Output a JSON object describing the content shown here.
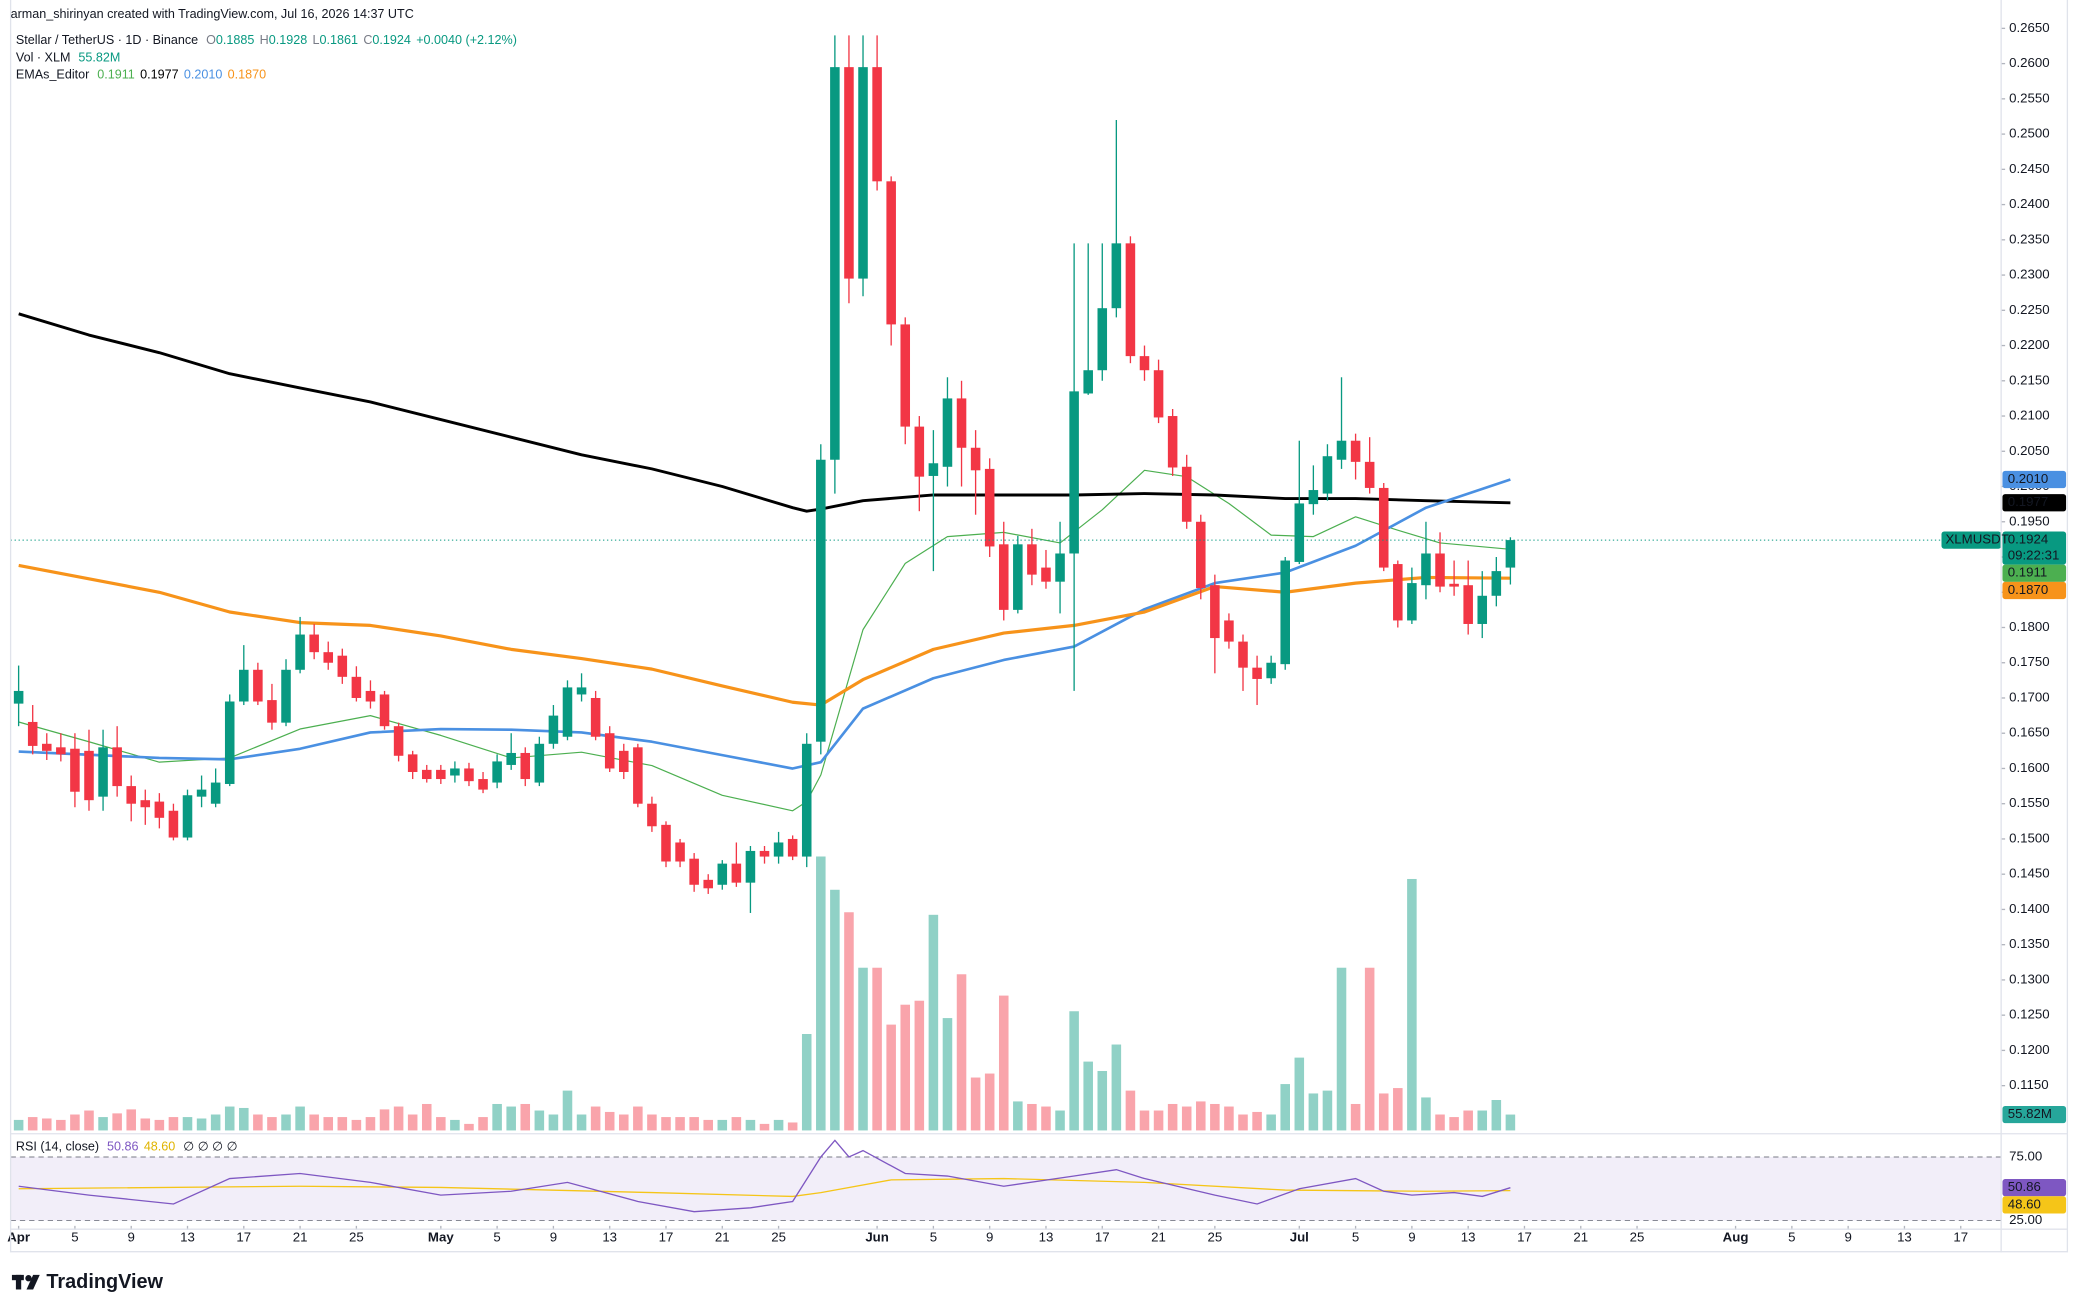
{
  "header": {
    "attribution": "arman_shirinyan created with TradingView.com, Jul 16, 2026 14:37 UTC",
    "symbol": "Stellar / TetherUS · 1D · Binance",
    "ohlc": [
      {
        "label": "O",
        "value": "0.1885"
      },
      {
        "label": "H",
        "value": "0.1928"
      },
      {
        "label": "L",
        "value": "0.1861"
      },
      {
        "label": "C",
        "value": "0.1924"
      }
    ],
    "change": "+0.0040 (+2.12%)",
    "volume_label": "Vol · XLM",
    "volume_value": "55.82M",
    "ema_label": "EMAs_Editor",
    "ema_values": [
      "0.1911",
      "0.1977",
      "0.2010",
      "0.1870"
    ]
  },
  "chart_data": {
    "type": "candlestick",
    "symbol_tag": "XLMUSDT",
    "countdown": "09:22:31",
    "up_color": "#089981",
    "down_color": "#f23645",
    "grid": false,
    "open": [
      0.1692,
      0.1666,
      0.1635,
      0.163,
      0.1628,
      0.1625,
      0.156,
      0.163,
      0.1575,
      0.1555,
      0.1553,
      0.154,
      0.1502,
      0.156,
      0.155,
      0.1578,
      0.1695,
      0.174,
      0.1697,
      0.1665,
      0.174,
      0.179,
      0.1765,
      0.176,
      0.173,
      0.171,
      0.1705,
      0.166,
      0.162,
      0.1598,
      0.1598,
      0.159,
      0.16,
      0.1585,
      0.158,
      0.1605,
      0.1622,
      0.158,
      0.1635,
      0.1645,
      0.1705,
      0.17,
      0.165,
      0.1625,
      0.163,
      0.155,
      0.152,
      0.1495,
      0.1472,
      0.1442,
      0.1435,
      0.1465,
      0.1438,
      0.1483,
      0.1475,
      0.15,
      0.1475,
      0.1638,
      0.2038,
      0.2595,
      0.2295,
      0.2595,
      0.2433,
      0.223,
      0.2085,
      0.2015,
      0.2028,
      0.2125,
      0.2055,
      0.2025,
      0.1918,
      0.1825,
      0.1918,
      0.1885,
      0.1865,
      0.1905,
      0.2132,
      0.2165,
      0.2253,
      0.2345,
      0.2185,
      0.2165,
      0.21,
      0.2028,
      0.195,
      0.186,
      0.181,
      0.178,
      0.1743,
      0.1728,
      0.1748,
      0.1893,
      0.1975,
      0.199,
      0.2038,
      0.2065,
      0.2035,
      0.1998,
      0.189,
      0.181,
      0.186,
      0.1905,
      0.1862,
      0.186,
      0.1805,
      0.1845,
      0.1885
    ],
    "high": [
      0.1746,
      0.169,
      0.165,
      0.165,
      0.165,
      0.1655,
      0.1655,
      0.166,
      0.159,
      0.157,
      0.1565,
      0.155,
      0.157,
      0.159,
      0.16,
      0.1705,
      0.1775,
      0.175,
      0.172,
      0.1755,
      0.1815,
      0.1805,
      0.178,
      0.177,
      0.1745,
      0.1725,
      0.171,
      0.1665,
      0.1625,
      0.1605,
      0.1605,
      0.161,
      0.1608,
      0.1595,
      0.162,
      0.165,
      0.163,
      0.1645,
      0.169,
      0.1725,
      0.1735,
      0.171,
      0.166,
      0.1635,
      0.1635,
      0.156,
      0.1525,
      0.15,
      0.148,
      0.145,
      0.147,
      0.1495,
      0.149,
      0.149,
      0.151,
      0.1505,
      0.165,
      0.206,
      0.264,
      0.264,
      0.264,
      0.264,
      0.244,
      0.224,
      0.21,
      0.208,
      0.2155,
      0.215,
      0.208,
      0.204,
      0.195,
      0.193,
      0.194,
      0.191,
      0.195,
      0.2345,
      0.2345,
      0.2345,
      0.252,
      0.2355,
      0.22,
      0.218,
      0.211,
      0.2045,
      0.196,
      0.1875,
      0.182,
      0.179,
      0.176,
      0.176,
      0.19,
      0.2065,
      0.203,
      0.206,
      0.2155,
      0.2075,
      0.207,
      0.2005,
      0.1895,
      0.1885,
      0.195,
      0.1935,
      0.1895,
      0.1895,
      0.188,
      0.19,
      0.1928
    ],
    "low": [
      0.166,
      0.162,
      0.1612,
      0.161,
      0.1545,
      0.154,
      0.154,
      0.156,
      0.1525,
      0.152,
      0.1515,
      0.1498,
      0.1498,
      0.1545,
      0.1545,
      0.1575,
      0.169,
      0.169,
      0.1655,
      0.166,
      0.1735,
      0.1755,
      0.174,
      0.172,
      0.1695,
      0.1685,
      0.1655,
      0.161,
      0.1585,
      0.158,
      0.1578,
      0.158,
      0.1575,
      0.1565,
      0.1572,
      0.1598,
      0.1575,
      0.1575,
      0.1628,
      0.164,
      0.1695,
      0.164,
      0.1595,
      0.1585,
      0.1545,
      0.151,
      0.146,
      0.146,
      0.1425,
      0.1422,
      0.1428,
      0.1432,
      0.1395,
      0.1465,
      0.1465,
      0.147,
      0.146,
      0.162,
      0.199,
      0.226,
      0.227,
      0.242,
      0.22,
      0.206,
      0.1965,
      0.188,
      0.2,
      0.2,
      0.196,
      0.19,
      0.181,
      0.182,
      0.186,
      0.1855,
      0.182,
      0.171,
      0.213,
      0.215,
      0.224,
      0.2175,
      0.215,
      0.209,
      0.2015,
      0.194,
      0.184,
      0.1735,
      0.177,
      0.171,
      0.169,
      0.172,
      0.174,
      0.189,
      0.196,
      0.198,
      0.2025,
      0.201,
      0.199,
      0.188,
      0.18,
      0.1805,
      0.184,
      0.185,
      0.1845,
      0.179,
      0.1785,
      0.183,
      0.1861
    ],
    "close": [
      0.171,
      0.1632,
      0.1625,
      0.162,
      0.1567,
      0.1555,
      0.163,
      0.1575,
      0.155,
      0.1545,
      0.153,
      0.1502,
      0.1562,
      0.157,
      0.158,
      0.1695,
      0.174,
      0.1695,
      0.1665,
      0.174,
      0.179,
      0.1765,
      0.175,
      0.173,
      0.17,
      0.1695,
      0.166,
      0.1618,
      0.1595,
      0.1585,
      0.1585,
      0.16,
      0.1582,
      0.157,
      0.161,
      0.1622,
      0.1585,
      0.1635,
      0.1675,
      0.1715,
      0.1715,
      0.1645,
      0.16,
      0.1595,
      0.155,
      0.1518,
      0.1468,
      0.1468,
      0.1435,
      0.143,
      0.1465,
      0.1438,
      0.1483,
      0.1475,
      0.1495,
      0.1475,
      0.1635,
      0.2038,
      0.2595,
      0.2295,
      0.2595,
      0.2433,
      0.223,
      0.2085,
      0.2014,
      0.2033,
      0.2125,
      0.2055,
      0.2023,
      0.1915,
      0.1825,
      0.1918,
      0.1875,
      0.1865,
      0.1905,
      0.2135,
      0.2165,
      0.2253,
      0.2345,
      0.2185,
      0.2165,
      0.2098,
      0.2027,
      0.195,
      0.1856,
      0.1785,
      0.178,
      0.1743,
      0.1727,
      0.175,
      0.1895,
      0.1976,
      0.1995,
      0.2043,
      0.2065,
      0.2035,
      0.1998,
      0.1885,
      0.181,
      0.1863,
      0.1905,
      0.1858,
      0.1858,
      0.1805,
      0.1845,
      0.188,
      0.1924
    ],
    "xlim": [
      -0.57,
      140.87
    ],
    "xticks": [
      {
        "value": 0,
        "label": "Apr"
      },
      {
        "value": 4,
        "label": "5"
      },
      {
        "value": 8,
        "label": "9"
      },
      {
        "value": 12,
        "label": "13"
      },
      {
        "value": 16,
        "label": "17"
      },
      {
        "value": 20,
        "label": "21"
      },
      {
        "value": 24,
        "label": "25"
      },
      {
        "value": 30,
        "label": "May"
      },
      {
        "value": 34,
        "label": "5"
      },
      {
        "value": 38,
        "label": "9"
      },
      {
        "value": 42,
        "label": "13"
      },
      {
        "value": 46,
        "label": "17"
      },
      {
        "value": 50,
        "label": "21"
      },
      {
        "value": 54,
        "label": "25"
      },
      {
        "value": 61,
        "label": "Jun"
      },
      {
        "value": 65,
        "label": "5"
      },
      {
        "value": 69,
        "label": "9"
      },
      {
        "value": 73,
        "label": "13"
      },
      {
        "value": 77,
        "label": "17"
      },
      {
        "value": 81,
        "label": "21"
      },
      {
        "value": 85,
        "label": "25"
      },
      {
        "value": 91,
        "label": "Jul"
      },
      {
        "value": 95,
        "label": "5"
      },
      {
        "value": 99,
        "label": "9"
      },
      {
        "value": 103,
        "label": "13"
      },
      {
        "value": 107,
        "label": "17"
      },
      {
        "value": 111,
        "label": "21"
      },
      {
        "value": 115,
        "label": "25"
      },
      {
        "value": 122,
        "label": "Aug"
      },
      {
        "value": 126,
        "label": "5"
      },
      {
        "value": 130,
        "label": "9"
      },
      {
        "value": 134,
        "label": "13"
      },
      {
        "value": 138,
        "label": "17"
      }
    ],
    "ylim": [
      0.10827,
      0.26564
    ],
    "yticks": [
      {
        "value": 0.265,
        "label": "0.2650"
      },
      {
        "value": 0.26,
        "label": "0.2600"
      },
      {
        "value": 0.255,
        "label": "0.2550"
      },
      {
        "value": 0.25,
        "label": "0.2500"
      },
      {
        "value": 0.245,
        "label": "0.2450"
      },
      {
        "value": 0.24,
        "label": "0.2400"
      },
      {
        "value": 0.235,
        "label": "0.2350"
      },
      {
        "value": 0.23,
        "label": "0.2300"
      },
      {
        "value": 0.225,
        "label": "0.2250"
      },
      {
        "value": 0.22,
        "label": "0.2200"
      },
      {
        "value": 0.215,
        "label": "0.2150"
      },
      {
        "value": 0.21,
        "label": "0.2100"
      },
      {
        "value": 0.205,
        "label": "0.2050"
      },
      {
        "value": 0.2,
        "label": "0.2000"
      },
      {
        "value": 0.195,
        "label": "0.1950"
      },
      {
        "value": 0.19,
        "label": "0.1900"
      },
      {
        "value": 0.185,
        "label": "0.1850"
      },
      {
        "value": 0.18,
        "label": "0.1800"
      },
      {
        "value": 0.175,
        "label": "0.1750"
      },
      {
        "value": 0.17,
        "label": "0.1700"
      },
      {
        "value": 0.165,
        "label": "0.1650"
      },
      {
        "value": 0.16,
        "label": "0.1600"
      },
      {
        "value": 0.155,
        "label": "0.1550"
      },
      {
        "value": 0.15,
        "label": "0.1500"
      },
      {
        "value": 0.145,
        "label": "0.1450"
      },
      {
        "value": 0.14,
        "label": "0.1400"
      },
      {
        "value": 0.135,
        "label": "0.1350"
      },
      {
        "value": 0.13,
        "label": "0.1300"
      },
      {
        "value": 0.125,
        "label": "0.1250"
      },
      {
        "value": 0.12,
        "label": "0.1200"
      },
      {
        "value": 0.115,
        "label": "0.1150"
      }
    ],
    "ema": [
      {
        "color": "#4caf50",
        "width": 0.9,
        "x": [
          0,
          5,
          10,
          15,
          20,
          25,
          30,
          35,
          40,
          45,
          50,
          55,
          56,
          57,
          60,
          63,
          66,
          70,
          74,
          77,
          80,
          83,
          86,
          89,
          92,
          95,
          98,
          101,
          106
        ],
        "values": [
          0.1666,
          0.1638,
          0.1609,
          0.1615,
          0.1656,
          0.1675,
          0.1647,
          0.1615,
          0.1623,
          0.1604,
          0.1562,
          0.154,
          0.1553,
          0.1591,
          0.1797,
          0.1891,
          0.1929,
          0.1935,
          0.192,
          0.1967,
          0.2023,
          0.2014,
          0.1976,
          0.1931,
          0.1929,
          0.1957,
          0.1938,
          0.192,
          0.1911
        ]
      },
      {
        "color": "#000000",
        "width": 2.2,
        "x": [
          0,
          5,
          10,
          15,
          20,
          25,
          30,
          35,
          40,
          45,
          50,
          55,
          56,
          57,
          60,
          65,
          70,
          75,
          80,
          85,
          90,
          95,
          100,
          106
        ],
        "values": [
          0.2245,
          0.2215,
          0.219,
          0.216,
          0.214,
          0.212,
          0.2095,
          0.207,
          0.2045,
          0.2025,
          0.2,
          0.197,
          0.1965,
          0.1968,
          0.198,
          0.1988,
          0.1988,
          0.1988,
          0.199,
          0.1988,
          0.1983,
          0.1983,
          0.198,
          0.1977
        ]
      },
      {
        "color": "#4a90e2",
        "width": 2,
        "x": [
          0,
          10,
          15,
          20,
          25,
          30,
          35,
          40,
          45,
          50,
          55,
          57,
          60,
          65,
          70,
          75,
          80,
          85,
          90,
          95,
          100,
          106
        ],
        "values": [
          0.1624,
          0.1615,
          0.1613,
          0.1628,
          0.1651,
          0.1656,
          0.1655,
          0.1651,
          0.1638,
          0.1619,
          0.16,
          0.1609,
          0.1685,
          0.1728,
          0.1754,
          0.1773,
          0.1826,
          0.1863,
          0.1878,
          0.1916,
          0.197,
          0.201
        ]
      },
      {
        "color": "#f7931a",
        "width": 2.4,
        "x": [
          0,
          10,
          15,
          20,
          25,
          30,
          35,
          40,
          45,
          50,
          55,
          57,
          60,
          65,
          70,
          75,
          80,
          85,
          90,
          95,
          100,
          106
        ],
        "values": [
          0.1888,
          0.185,
          0.1822,
          0.1807,
          0.1803,
          0.1788,
          0.1769,
          0.1756,
          0.1741,
          0.1717,
          0.1694,
          0.169,
          0.1726,
          0.1769,
          0.1792,
          0.1803,
          0.1822,
          0.1858,
          0.185,
          0.1863,
          0.1871,
          0.187
        ]
      }
    ],
    "volume": {
      "ylim": [
        0,
        3890
      ],
      "values": [
        37,
        47,
        42,
        37,
        56,
        70,
        47,
        60,
        74,
        42,
        37,
        47,
        47,
        42,
        56,
        84,
        79,
        56,
        47,
        56,
        84,
        56,
        47,
        47,
        37,
        47,
        74,
        84,
        56,
        93,
        47,
        37,
        23,
        47,
        93,
        84,
        93,
        70,
        56,
        140,
        56,
        84,
        65,
        56,
        84,
        56,
        47,
        47,
        47,
        37,
        37,
        47,
        37,
        23,
        37,
        28,
        339,
        963,
        846,
        767,
        572,
        572,
        372,
        442,
        456,
        758,
        395,
        549,
        186,
        200,
        474,
        102,
        93,
        84,
        70,
        419,
        242,
        209,
        302,
        140,
        70,
        70,
        93,
        84,
        102,
        93,
        84,
        56,
        65,
        56,
        163,
        256,
        130,
        140,
        572,
        93,
        572,
        130,
        149,
        884,
        116,
        56,
        47,
        70,
        70,
        107,
        55.82
      ]
    },
    "rsi": {
      "label": "RSI (14, close)",
      "value": "50.86",
      "ma_value": "48.60",
      "extras": "∅ ∅ ∅ ∅",
      "ylim": [
        17.7,
        91.7
      ],
      "yticks": [
        {
          "value": 75,
          "label": "75.00"
        },
        {
          "value": 25,
          "label": "25.00"
        }
      ],
      "line": {
        "color": "#7e57c2",
        "x": [
          0,
          5,
          11,
          15,
          20,
          25,
          30,
          35,
          39,
          44,
          48,
          52,
          55,
          57,
          58,
          59,
          60,
          63,
          66,
          70,
          75,
          78,
          80,
          85,
          88,
          91,
          95,
          97,
          99,
          102,
          104,
          106
        ],
        "values": [
          52,
          45,
          38,
          58,
          62,
          55,
          45,
          48,
          55,
          40,
          32,
          35,
          40,
          75,
          88,
          75,
          80,
          62,
          60,
          52,
          60,
          65,
          58,
          45,
          38,
          50,
          58,
          48,
          45,
          47,
          44,
          50.86
        ]
      },
      "ma": {
        "color": "#f5c518",
        "x": [
          0,
          20,
          30,
          45,
          55,
          57,
          62,
          70,
          80,
          90,
          100,
          106
        ],
        "values": [
          50,
          52,
          51,
          47,
          44,
          47,
          57,
          58,
          55,
          49,
          48,
          48.6
        ]
      }
    }
  },
  "footer": {
    "brand": "TradingView"
  }
}
